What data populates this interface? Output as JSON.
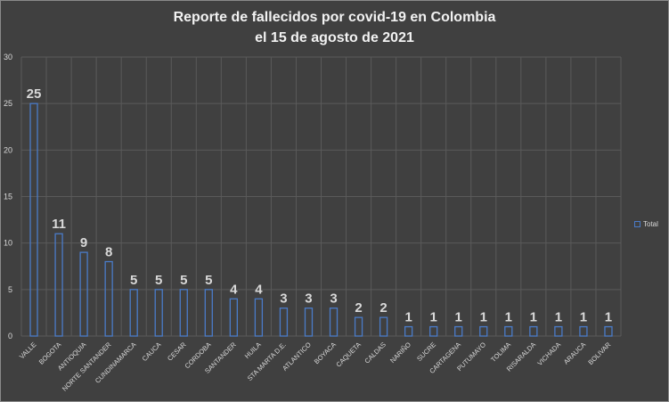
{
  "chart_data": {
    "type": "bar",
    "title": "Reporte de fallecidos por covid-19 en Colombia el 15 de agosto de 2021",
    "title_lines": [
      "Reporte de fallecidos por covid-19 en Colombia",
      "el 15 de agosto de 2021"
    ],
    "categories": [
      "VALLE",
      "BOGOTA",
      "ANTIOQUIA",
      "NORTE SANTANDER",
      "CUNDINAMARCA",
      "CAUCA",
      "CESAR",
      "CORDOBA",
      "SANTANDER",
      "HUILA",
      "STA MARTA D.E.",
      "ATLANTICO",
      "BOYACA",
      "CAQUETA",
      "CALDAS",
      "NARIÑO",
      "SUCRE",
      "CARTAGENA",
      "PUTUMAYO",
      "TOLIMA",
      "RISARALDA",
      "VICHADA",
      "ARAUCA",
      "BOLIVAR"
    ],
    "series": [
      {
        "name": "Total",
        "values": [
          25,
          11,
          9,
          8,
          5,
          5,
          5,
          5,
          4,
          4,
          3,
          3,
          3,
          2,
          2,
          1,
          1,
          1,
          1,
          1,
          1,
          1,
          1,
          1
        ]
      }
    ],
    "ylim": [
      0,
      30
    ],
    "yticks": [
      0,
      5,
      10,
      15,
      20,
      25,
      30
    ],
    "grid": true,
    "legend": "right",
    "data_labels": true,
    "colors": {
      "bar_outline": "#4a7bc8",
      "background": "#404040",
      "text": "#d9d9d9",
      "grid": "#5a5a5a"
    }
  }
}
